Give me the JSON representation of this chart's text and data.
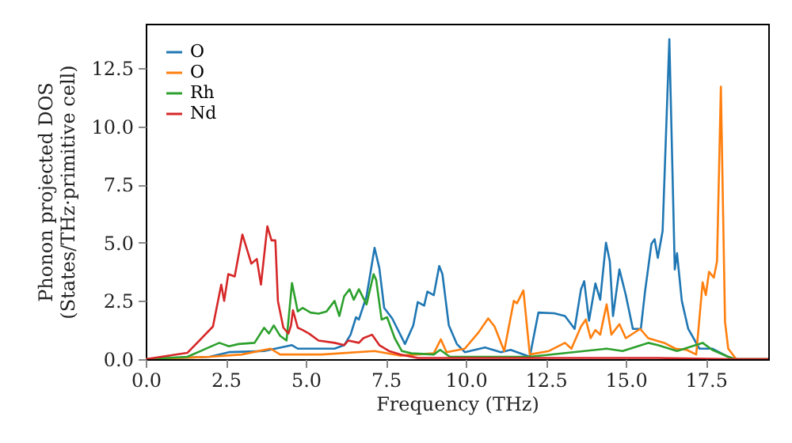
{
  "chart_data": {
    "type": "line",
    "xlabel": "Frequency (THz)",
    "ylabel": "Phonon projected DOS\n(States/THz·primitive cell)",
    "xlim": [
      0,
      19.45
    ],
    "ylim": [
      0,
      14.4
    ],
    "xticks": [
      {
        "value": 0,
        "label": "0.0"
      },
      {
        "value": 2.5,
        "label": "2.5"
      },
      {
        "value": 5,
        "label": "5.0"
      },
      {
        "value": 7.5,
        "label": "7.5"
      },
      {
        "value": 10,
        "label": "10.0"
      },
      {
        "value": 12.5,
        "label": "12.5"
      },
      {
        "value": 15,
        "label": "15.0"
      },
      {
        "value": 17.5,
        "label": "17.5"
      }
    ],
    "yticks": [
      {
        "value": 0,
        "label": "0.0"
      },
      {
        "value": 2.5,
        "label": "2.5"
      },
      {
        "value": 5,
        "label": "5.0"
      },
      {
        "value": 7.5,
        "label": "7.5"
      },
      {
        "value": 10,
        "label": "10.0"
      },
      {
        "value": 12.5,
        "label": "12.5"
      }
    ],
    "grid": false,
    "legend": "top left",
    "marker": "none",
    "line_style": "solid",
    "series": [
      {
        "name": "O",
        "color": "#1f77b4",
        "x": [
          0,
          2.0,
          2.6,
          3.7,
          4.57,
          4.75,
          5.9,
          6.2,
          6.4,
          6.57,
          6.66,
          6.9,
          7.15,
          7.3,
          7.45,
          7.7,
          8.1,
          8.36,
          8.5,
          8.7,
          8.8,
          9.0,
          9.17,
          9.27,
          9.47,
          9.72,
          9.97,
          10.6,
          11.1,
          11.4,
          12.0,
          12.27,
          12.76,
          13.1,
          13.4,
          13.6,
          13.7,
          13.85,
          14.05,
          14.2,
          14.38,
          14.5,
          14.6,
          14.8,
          15.0,
          15.22,
          15.47,
          15.6,
          15.8,
          15.9,
          16.0,
          16.15,
          16.36,
          16.53,
          16.6,
          16.75,
          16.95,
          17.3,
          17.7,
          18.2,
          18.4,
          19.45
        ],
        "values": [
          0,
          0.1,
          0.3,
          0.35,
          0.6,
          0.45,
          0.45,
          0.6,
          1.05,
          1.8,
          1.7,
          2.7,
          4.78,
          3.9,
          2.2,
          1.75,
          0.65,
          1.45,
          2.45,
          2.3,
          2.9,
          2.75,
          4.0,
          3.65,
          1.45,
          0.65,
          0.3,
          0.5,
          0.3,
          0.4,
          0.1,
          2.0,
          1.97,
          1.85,
          1.3,
          3.0,
          3.35,
          1.65,
          3.25,
          2.55,
          5.0,
          4.2,
          1.85,
          3.85,
          2.75,
          1.3,
          1.3,
          2.9,
          4.95,
          5.15,
          4.35,
          5.5,
          13.74,
          3.85,
          4.55,
          2.5,
          1.3,
          0.45,
          0.45,
          0.1,
          0,
          0
        ]
      },
      {
        "name": "O",
        "color": "#ff7f0e",
        "x": [
          0,
          2.0,
          3.0,
          3.9,
          4.2,
          5.5,
          7.15,
          7.95,
          9.0,
          9.22,
          9.4,
          9.97,
          10.4,
          10.7,
          10.9,
          11.2,
          11.5,
          11.6,
          11.8,
          12.0,
          12.6,
          13.1,
          13.3,
          13.6,
          13.75,
          13.9,
          14.05,
          14.2,
          14.4,
          14.55,
          14.8,
          15.0,
          15.45,
          15.7,
          16.2,
          16.55,
          16.9,
          17.2,
          17.4,
          17.5,
          17.6,
          17.75,
          17.85,
          17.97,
          18.1,
          18.2,
          18.45,
          19.45
        ],
        "values": [
          0,
          0.1,
          0.2,
          0.45,
          0.2,
          0.2,
          0.35,
          0.15,
          0.25,
          0.85,
          0.3,
          0.45,
          1.15,
          1.75,
          1.4,
          0.35,
          2.5,
          2.4,
          2.95,
          0.2,
          0.35,
          0.7,
          0.45,
          1.4,
          1.7,
          0.9,
          1.25,
          1.05,
          2.35,
          1.05,
          1.5,
          0.9,
          1.3,
          0.9,
          0.7,
          0.45,
          0.4,
          0.2,
          3.3,
          2.75,
          3.75,
          3.5,
          4.2,
          11.7,
          1.6,
          0.45,
          0,
          0
        ]
      },
      {
        "name": "Rh",
        "color": "#2ca02c",
        "x": [
          0,
          1.3,
          2.3,
          2.6,
          2.9,
          3.4,
          3.7,
          3.85,
          4.0,
          4.2,
          4.4,
          4.57,
          4.75,
          4.9,
          5.15,
          5.4,
          5.65,
          5.9,
          6.05,
          6.2,
          6.37,
          6.5,
          6.66,
          6.9,
          7.12,
          7.2,
          7.37,
          7.54,
          7.78,
          8.0,
          8.3,
          9.0,
          9.2,
          9.5,
          12.0,
          14.4,
          14.9,
          15.7,
          16.0,
          16.6,
          17.4,
          17.7,
          18.2,
          18.4,
          19.45
        ],
        "values": [
          0,
          0.1,
          0.7,
          0.55,
          0.65,
          0.7,
          1.35,
          1.1,
          1.45,
          1.0,
          0.8,
          3.27,
          2.05,
          2.2,
          2.0,
          1.95,
          2.05,
          2.5,
          1.85,
          2.7,
          3.0,
          2.55,
          3.0,
          2.35,
          3.65,
          3.4,
          1.7,
          1.8,
          0.9,
          0.35,
          0.25,
          0.2,
          0.4,
          0.1,
          0.1,
          0.45,
          0.35,
          0.7,
          0.6,
          0.35,
          0.7,
          0.4,
          0.1,
          0,
          0
        ]
      },
      {
        "name": "Nd",
        "color": "#d62728",
        "x": [
          0,
          1.3,
          2.1,
          2.36,
          2.45,
          2.58,
          2.78,
          3.02,
          3.19,
          3.3,
          3.47,
          3.6,
          3.8,
          3.93,
          4.05,
          4.13,
          4.3,
          4.46,
          4.54,
          4.6,
          4.75,
          4.9,
          5.1,
          5.4,
          5.9,
          6.2,
          6.33,
          6.66,
          6.8,
          7.07,
          7.3,
          7.6,
          7.95,
          8.5,
          12.0,
          16.0,
          18.4,
          19.45
        ],
        "values": [
          0,
          0.27,
          1.4,
          3.2,
          2.5,
          3.65,
          3.55,
          5.35,
          4.6,
          4.1,
          4.3,
          3.2,
          5.7,
          5.1,
          5.1,
          2.5,
          1.35,
          1.1,
          1.45,
          2.1,
          1.35,
          1.25,
          1.1,
          0.8,
          0.7,
          0.6,
          0.8,
          0.7,
          0.9,
          1.05,
          0.6,
          0.35,
          0.2,
          0.05,
          0.05,
          0.05,
          0,
          0
        ]
      }
    ]
  }
}
